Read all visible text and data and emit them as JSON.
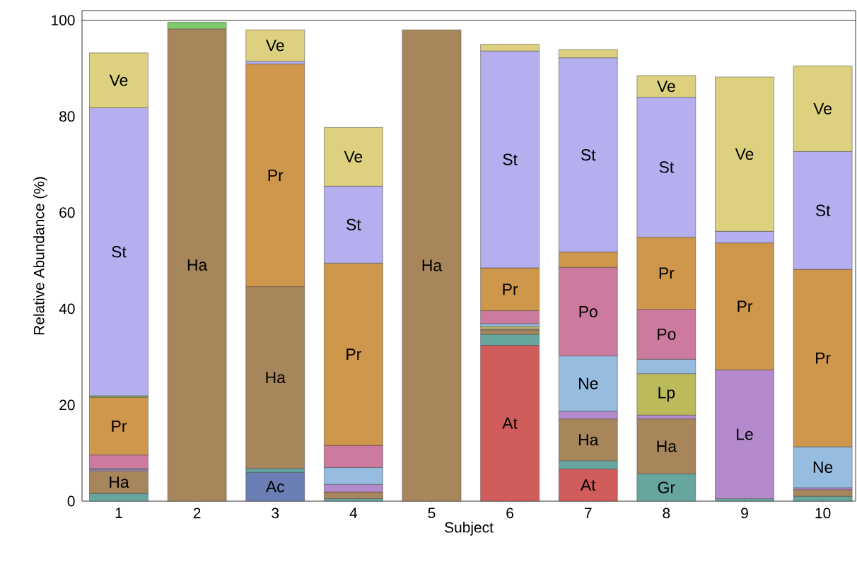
{
  "chart_data": {
    "type": "bar",
    "stacked": true,
    "xlabel": "Subject",
    "ylabel": "Relative Abundance (%)",
    "categories": [
      "1",
      "2",
      "3",
      "4",
      "5",
      "6",
      "7",
      "8",
      "9",
      "10"
    ],
    "ylim": [
      0,
      102
    ],
    "yticks": [
      0,
      20,
      40,
      60,
      80,
      100
    ],
    "grid": false,
    "ref_lines": [
      {
        "axis": "y",
        "value": 100,
        "color": "#000000"
      }
    ],
    "series": [
      {
        "color": "#6c7fb4",
        "values": [
          null,
          null,
          6.0,
          null,
          null,
          null,
          null,
          null,
          null,
          null
        ],
        "value_labels": [
          null,
          null,
          "Ac",
          null,
          null,
          null,
          null,
          null,
          null,
          null
        ]
      },
      {
        "color": "#d05c5c",
        "values": [
          null,
          null,
          null,
          null,
          null,
          32.4,
          6.7,
          null,
          null,
          null
        ],
        "value_labels": [
          null,
          null,
          null,
          null,
          null,
          "At",
          "At",
          null,
          null,
          null
        ]
      },
      {
        "color": "#66a69f",
        "values": [
          1.6,
          null,
          0.8,
          0.5,
          null,
          2.3,
          1.7,
          5.7,
          0.5,
          1.0
        ],
        "value_labels": [
          null,
          null,
          null,
          null,
          null,
          null,
          null,
          "Gr",
          null,
          null
        ]
      },
      {
        "color": "#a8865c",
        "values": [
          4.7,
          98.2,
          37.8,
          1.4,
          98.0,
          0.9,
          8.7,
          11.4,
          null,
          1.4
        ],
        "value_labels": [
          "Ha",
          "Ha",
          "Ha",
          null,
          "Ha",
          null,
          "Ha",
          "Ha",
          null,
          null
        ]
      },
      {
        "color": "#b48acc",
        "values": [
          0.3,
          null,
          null,
          1.6,
          null,
          0.2,
          1.6,
          0.8,
          26.8,
          0.4
        ],
        "value_labels": [
          null,
          null,
          null,
          null,
          null,
          null,
          null,
          null,
          "Le",
          null
        ]
      },
      {
        "color": "#bcbb5c",
        "values": [
          null,
          null,
          null,
          null,
          null,
          0.5,
          null,
          8.6,
          null,
          null
        ],
        "value_labels": [
          null,
          null,
          null,
          null,
          null,
          null,
          null,
          "Lp",
          null,
          null
        ]
      },
      {
        "color": "#96bde0",
        "values": [
          0.2,
          null,
          null,
          3.5,
          null,
          0.6,
          11.5,
          3.0,
          null,
          8.5
        ],
        "value_labels": [
          null,
          null,
          null,
          null,
          null,
          null,
          "Ne",
          null,
          null,
          "Ne"
        ]
      },
      {
        "color": "#cd7a9f",
        "values": [
          2.8,
          null,
          null,
          4.6,
          null,
          2.7,
          18.4,
          10.4,
          null,
          null
        ],
        "value_labels": [
          null,
          null,
          null,
          null,
          null,
          null,
          "Po",
          "Po",
          null,
          null
        ]
      },
      {
        "color": "#cf974b",
        "values": [
          12.0,
          null,
          46.3,
          37.9,
          null,
          8.9,
          3.2,
          15.0,
          26.4,
          36.9
        ],
        "value_labels": [
          "Pr",
          null,
          "Pr",
          "Pr",
          null,
          "Pr",
          null,
          "Pr",
          "Pr",
          "Pr"
        ]
      },
      {
        "color": "#7fca6a",
        "values": [
          0.3,
          1.4,
          null,
          null,
          null,
          null,
          null,
          null,
          null,
          null
        ]
      },
      {
        "color": "#b5aff0",
        "values": [
          59.9,
          null,
          0.6,
          16.0,
          null,
          45.1,
          40.4,
          29.1,
          2.4,
          24.5
        ],
        "value_labels": [
          "St",
          null,
          null,
          "St",
          null,
          "St",
          "St",
          "St",
          null,
          "St"
        ]
      },
      {
        "color": "#ddd17f",
        "values": [
          11.4,
          null,
          6.5,
          12.2,
          null,
          1.4,
          1.7,
          4.5,
          32.1,
          17.8
        ],
        "value_labels": [
          "Ve",
          null,
          "Ve",
          "Ve",
          null,
          null,
          null,
          "Ve",
          "Ve",
          "Ve"
        ]
      }
    ]
  }
}
